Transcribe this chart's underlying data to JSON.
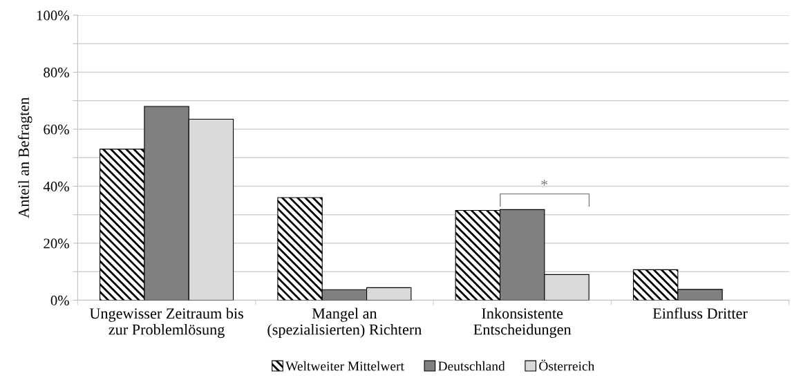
{
  "chart_data": {
    "type": "bar",
    "ylabel": "Anteil an Befragten",
    "categories": [
      "Ungewisser Zeitraum bis\nzur Problemlösung",
      "Mangel an\n(spezialisierten) Richtern",
      "Inkonsistente\nEntscheidungen",
      "Einfluss Dritter"
    ],
    "series": [
      {
        "name": "Weltweiter Mittelwert",
        "color": "#000000",
        "values": [
          53,
          36,
          31.5,
          10.7
        ]
      },
      {
        "name": "Deutschland",
        "color": "#808080",
        "values": [
          68,
          3.7,
          31.8,
          3.8
        ]
      },
      {
        "name": "Österreich",
        "color": "#d9d9d9",
        "values": [
          63.5,
          4.4,
          9,
          null
        ]
      }
    ],
    "ylim": [
      0,
      100
    ],
    "yticks": [
      {
        "value": 0,
        "label": "0%"
      },
      {
        "value": 10,
        "label": null
      },
      {
        "value": 20,
        "label": "20%"
      },
      {
        "value": 30,
        "label": null
      },
      {
        "value": 40,
        "label": "40%"
      },
      {
        "value": 50,
        "label": null
      },
      {
        "value": 60,
        "label": "60%"
      },
      {
        "value": 70,
        "label": null
      },
      {
        "value": 80,
        "label": "80%"
      },
      {
        "value": 90,
        "label": null
      },
      {
        "value": 100,
        "label": "100%"
      }
    ],
    "grid": "y",
    "legend": "bottom",
    "annotations": [
      "*"
    ]
  }
}
